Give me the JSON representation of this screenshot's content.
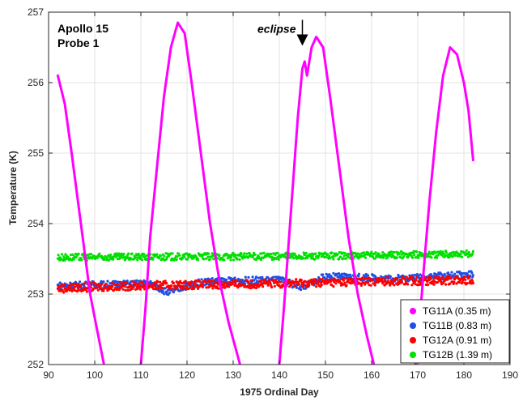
{
  "chart_data": {
    "type": "scatter",
    "xlabel": "1975 Ordinal Day",
    "ylabel": "Temperature (K)",
    "xlim": [
      90,
      190
    ],
    "ylim": [
      252,
      257
    ],
    "xticks": [
      90,
      100,
      110,
      120,
      130,
      140,
      150,
      160,
      170,
      180,
      190
    ],
    "yticks": [
      252,
      253,
      254,
      255,
      256,
      257
    ],
    "grid": true,
    "legend_position": "bottom-right",
    "annotations": {
      "title_lines": [
        "Apollo 15",
        "Probe 1"
      ],
      "eclipse": {
        "text": "eclipse",
        "x": 145.0,
        "y": 256.5
      }
    },
    "series": [
      {
        "name": "TG11A (0.35 m)",
        "color": "#ff00ff",
        "segments": [
          [
            [
              92.0,
              256.1
            ],
            [
              93.5,
              255.7
            ],
            [
              95.0,
              255.0
            ],
            [
              97.0,
              254.0
            ],
            [
              99.0,
              253.0
            ],
            [
              100.5,
              252.5
            ],
            [
              102.0,
              252.0
            ]
          ],
          [
            [
              110.0,
              252.0
            ],
            [
              111.0,
              252.8
            ],
            [
              112.0,
              253.8
            ],
            [
              113.5,
              254.8
            ],
            [
              115.0,
              255.8
            ],
            [
              116.5,
              256.5
            ],
            [
              118.0,
              256.85
            ],
            [
              119.5,
              256.7
            ],
            [
              121.0,
              256.0
            ],
            [
              123.0,
              255.0
            ],
            [
              125.0,
              254.0
            ],
            [
              127.0,
              253.2
            ],
            [
              129.0,
              252.6
            ],
            [
              131.5,
              252.0
            ]
          ],
          [
            [
              140.0,
              252.0
            ],
            [
              141.0,
              252.8
            ],
            [
              142.0,
              253.7
            ],
            [
              143.0,
              254.6
            ],
            [
              144.0,
              255.5
            ],
            [
              145.0,
              256.2
            ],
            [
              145.5,
              256.3
            ],
            [
              146.0,
              256.1
            ],
            [
              147.0,
              256.5
            ],
            [
              148.0,
              256.65
            ],
            [
              149.5,
              256.5
            ],
            [
              151.0,
              255.8
            ],
            [
              153.0,
              254.8
            ],
            [
              155.0,
              253.8
            ],
            [
              157.0,
              253.0
            ],
            [
              159.0,
              252.4
            ],
            [
              160.5,
              252.0
            ]
          ],
          [
            [
              169.5,
              252.0
            ],
            [
              170.5,
              252.7
            ],
            [
              171.5,
              253.5
            ],
            [
              172.5,
              254.3
            ],
            [
              174.0,
              255.3
            ],
            [
              175.5,
              256.1
            ],
            [
              177.0,
              256.5
            ],
            [
              178.5,
              256.4
            ],
            [
              180.0,
              256.0
            ],
            [
              181.0,
              255.6
            ],
            [
              182.0,
              254.9
            ]
          ]
        ]
      },
      {
        "name": "TG11B (0.83 m)",
        "color": "#1f4fe6",
        "trend": [
          [
            92,
            253.12
          ],
          [
            112,
            253.15
          ],
          [
            116,
            253.02
          ],
          [
            120,
            253.12
          ],
          [
            124,
            253.18
          ],
          [
            140,
            253.2
          ],
          [
            145,
            253.1
          ],
          [
            150,
            253.25
          ],
          [
            165,
            253.22
          ],
          [
            182,
            253.28
          ]
        ]
      },
      {
        "name": "TG12A (0.91 m)",
        "color": "#ff0000",
        "trend": [
          [
            92,
            253.08
          ],
          [
            110,
            253.12
          ],
          [
            140,
            253.15
          ],
          [
            160,
            253.18
          ],
          [
            182,
            253.2
          ]
        ]
      },
      {
        "name": "TG12B (1.39 m)",
        "color": "#00e000",
        "trend": [
          [
            92,
            253.52
          ],
          [
            120,
            253.53
          ],
          [
            150,
            253.54
          ],
          [
            182,
            253.57
          ]
        ]
      }
    ]
  }
}
